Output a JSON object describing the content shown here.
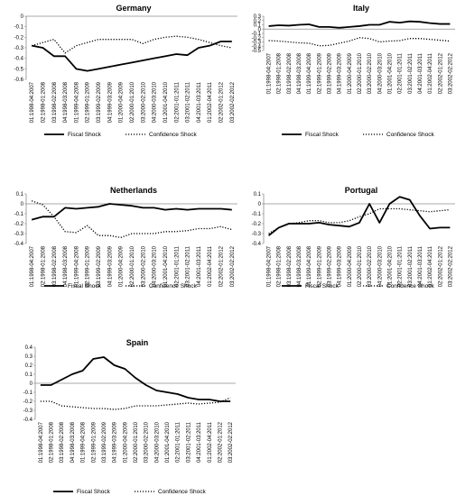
{
  "chart_data": [
    {
      "type": "line",
      "title": "Germany",
      "categories": [
        "01:1998-04:2007",
        "02:1998-01:2008",
        "03:1998-02:2008",
        "04:1998-03:2008",
        "01:1999-04:2008",
        "02:1999-01:2009",
        "03:1999-02:2009",
        "04:1999-03:2009",
        "01:2000-04:2009",
        "02:2000-01:2010",
        "03:2000-02:2010",
        "04:2000-03:2010",
        "01:2001-04:2010",
        "02:2001-01:2011",
        "03:2001-02:2011",
        "04:2001-03:2011",
        "01:2002-04:2011",
        "02:2002-01:2012",
        "03:2002-02:2012"
      ],
      "series": [
        {
          "name": "Fiscal Shock",
          "style": "solid",
          "values": [
            -0.28,
            -0.3,
            -0.38,
            -0.38,
            -0.5,
            -0.52,
            -0.5,
            -0.48,
            -0.46,
            -0.44,
            -0.42,
            -0.4,
            -0.38,
            -0.36,
            -0.37,
            -0.3,
            -0.28,
            -0.24,
            -0.24
          ]
        },
        {
          "name": "Confidence Shock",
          "style": "dotted",
          "values": [
            -0.28,
            -0.25,
            -0.22,
            -0.35,
            -0.28,
            -0.25,
            -0.22,
            -0.22,
            -0.22,
            -0.22,
            -0.26,
            -0.22,
            -0.2,
            -0.19,
            -0.2,
            -0.22,
            -0.25,
            -0.28,
            -0.3
          ]
        }
      ],
      "yticks": [
        "0",
        "-0.1",
        "-0.2",
        "-0.3",
        "-0.4",
        "-0.5",
        "-0.6"
      ],
      "ylim": [
        -0.6,
        0
      ]
    },
    {
      "type": "line",
      "title": "Italy",
      "categories": [
        "01:1998-04:2007",
        "02:1998-01:2008",
        "03:1998-02:2008",
        "04:1998-03:2008",
        "01:1999-04:2008",
        "02:1999-01:2009",
        "03:1999-02:2009",
        "04:1999-03:2009",
        "01:2000-04:2009",
        "02:2000-01:2010",
        "03:2000-02:2010",
        "04:2000-03:2010",
        "01:2001-04:2010",
        "02:2001-01:2011",
        "03:2001-02:2011",
        "04:2001-03:2011",
        "01:2002-04:2011",
        "02:2002-01:2012",
        "03:2002-02:2012"
      ],
      "series": [
        {
          "name": "Fiscal Shock",
          "style": "solid",
          "values": [
            0.07,
            0.09,
            0.08,
            0.1,
            0.11,
            0.05,
            0.05,
            0.03,
            0.05,
            0.07,
            0.1,
            0.1,
            0.17,
            0.15,
            0.18,
            0.17,
            0.14,
            0.12,
            0.12
          ]
        },
        {
          "name": "Confidence Shock",
          "style": "dotted",
          "values": [
            -0.27,
            -0.28,
            -0.3,
            -0.32,
            -0.33,
            -0.39,
            -0.38,
            -0.33,
            -0.28,
            -0.2,
            -0.22,
            -0.3,
            -0.28,
            -0.27,
            -0.22,
            -0.22,
            -0.24,
            -0.26,
            -0.28
          ]
        }
      ],
      "yticks": [
        "0.3",
        "0.2",
        "0.1",
        "0",
        "-0.1",
        "-0.2",
        "-0.3",
        "-0.4",
        "-0.5"
      ],
      "ylim": [
        -0.5,
        0.3
      ]
    },
    {
      "type": "line",
      "title": "Netherlands",
      "categories": [
        "01:1998-04:2007",
        "02:1998-01:2008",
        "03:1998-02:2008",
        "04:1998-03:2008",
        "01:1999-04:2008",
        "02:1999-01:2009",
        "03:1999-02:2009",
        "04:1999-03:2009",
        "01:2000-04:2009",
        "02:2000-01:2010",
        "03:2000-02:2010",
        "04:2000-03:2010",
        "01:2001-04:2010",
        "02:2001-01:2011",
        "03:2001-02:2011",
        "04:2001-03:2011",
        "01:2002-04:2011",
        "02:2002-01:2012",
        "03:2002-02:2012"
      ],
      "series": [
        {
          "name": "Fiscal Shock",
          "style": "solid",
          "values": [
            -0.16,
            -0.13,
            -0.13,
            -0.04,
            -0.05,
            -0.04,
            -0.03,
            0.0,
            -0.01,
            -0.02,
            -0.04,
            -0.04,
            -0.06,
            -0.05,
            -0.06,
            -0.05,
            -0.05,
            -0.05,
            -0.06
          ]
        },
        {
          "name": "Confidence Shock",
          "style": "dotted",
          "values": [
            0.03,
            -0.01,
            -0.13,
            -0.28,
            -0.29,
            -0.22,
            -0.32,
            -0.32,
            -0.34,
            -0.3,
            -0.3,
            -0.3,
            -0.28,
            -0.28,
            -0.27,
            -0.25,
            -0.25,
            -0.23,
            -0.26
          ]
        }
      ],
      "yticks": [
        "0.1",
        "0",
        "-0.1",
        "-0.2",
        "-0.3",
        "-0.4"
      ],
      "ylim": [
        -0.4,
        0.1
      ]
    },
    {
      "type": "line",
      "title": "Portugal",
      "categories": [
        "01:1998-04:2007",
        "02:1998-01:2008",
        "03:1998-02:2008",
        "04:1998-03:2008",
        "01:1999-04:2008",
        "02:1999-01:2009",
        "03:1999-02:2009",
        "04:1999-03:2009",
        "01:2000-04:2009",
        "02:2000-01:2010",
        "03:2000-02:2010",
        "04:2000-03:2010",
        "01:2001-04:2010",
        "02:2001-01:2011",
        "03:2001-02:2011",
        "04:2001-03:2011",
        "01:2002-04:2011",
        "02:2002-01:2012",
        "03:2002-02:2012"
      ],
      "series": [
        {
          "name": "Fiscal Shock",
          "style": "solid",
          "values": [
            -0.32,
            -0.24,
            -0.2,
            -0.2,
            -0.2,
            -0.19,
            -0.21,
            -0.22,
            -0.23,
            -0.19,
            0.0,
            -0.19,
            0.0,
            0.07,
            0.04,
            -0.12,
            -0.25,
            -0.24,
            -0.24
          ]
        },
        {
          "name": "Confidence Shock",
          "style": "dotted",
          "values": [
            -0.3,
            -0.24,
            -0.2,
            -0.19,
            -0.17,
            -0.17,
            -0.19,
            -0.19,
            -0.17,
            -0.13,
            -0.1,
            -0.05,
            -0.05,
            -0.05,
            -0.06,
            -0.07,
            -0.08,
            -0.07,
            -0.06
          ]
        }
      ],
      "yticks": [
        "0.1",
        "0",
        "-0.1",
        "-0.2",
        "-0.3",
        "-0.4"
      ],
      "ylim": [
        -0.4,
        0.1
      ]
    },
    {
      "type": "line",
      "title": "Spain",
      "categories": [
        "01:1998-04:2007",
        "02:1998-01:2008",
        "03:1998-02:2008",
        "04:1998-03:2008",
        "01:1999-04:2008",
        "02:1999-01:2009",
        "03:1999-02:2009",
        "04:1999-03:2009",
        "01:2000-04:2009",
        "02:2000-01:2010",
        "03:2000-02:2010",
        "04:2000-03:2010",
        "01:2001-04:2010",
        "02:2001-01:2011",
        "03:2001-02:2011",
        "04:2001-03:2011",
        "01:2002-04:2011",
        "02:2002-01:2012",
        "03:2002-02:2012"
      ],
      "series": [
        {
          "name": "Fiscal Shock",
          "style": "solid",
          "values": [
            -0.02,
            -0.02,
            0.04,
            0.1,
            0.14,
            0.27,
            0.29,
            0.2,
            0.16,
            0.06,
            -0.02,
            -0.08,
            -0.1,
            -0.12,
            -0.16,
            -0.18,
            -0.18,
            -0.2,
            -0.2
          ]
        },
        {
          "name": "Confidence Shock",
          "style": "dotted",
          "values": [
            -0.2,
            -0.2,
            -0.25,
            -0.26,
            -0.27,
            -0.28,
            -0.28,
            -0.29,
            -0.28,
            -0.25,
            -0.25,
            -0.25,
            -0.24,
            -0.23,
            -0.22,
            -0.23,
            -0.22,
            -0.21,
            -0.16
          ]
        }
      ],
      "yticks": [
        "0.4",
        "0.3",
        "0.2",
        "0.1",
        "0",
        "-0.1",
        "-0.2",
        "-0.3",
        "-0.4"
      ],
      "ylim": [
        -0.4,
        0.4
      ]
    }
  ]
}
